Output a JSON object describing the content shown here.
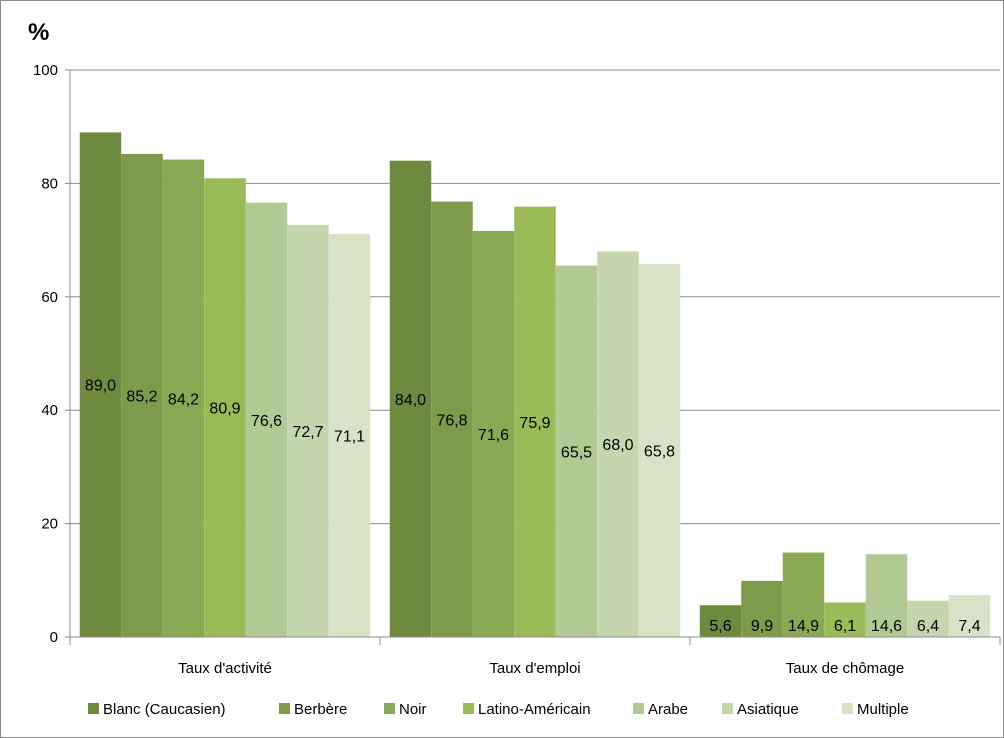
{
  "chart_data": {
    "type": "bar",
    "ylabel": "%",
    "ylim": [
      0,
      100
    ],
    "yticks": [
      0,
      20,
      40,
      60,
      80,
      100
    ],
    "grid": true,
    "legend_position": "bottom",
    "categories": [
      "Taux d'activité",
      "Taux d'emploi",
      "Taux de chômage"
    ],
    "series": [
      {
        "name": "Blanc (Caucasien)",
        "color": "#6f8a3f",
        "values": [
          89.0,
          84.0,
          5.6
        ],
        "labels": [
          "89,0",
          "84,0",
          "5,6"
        ]
      },
      {
        "name": "Berbère",
        "color": "#7e9a4a",
        "values": [
          85.2,
          76.8,
          9.9
        ],
        "labels": [
          "85,2",
          "76,8",
          "9,9"
        ]
      },
      {
        "name": "Noir",
        "color": "#8aa954",
        "values": [
          84.2,
          71.6,
          14.9
        ],
        "labels": [
          "84,2",
          "71,6",
          "14,9"
        ]
      },
      {
        "name": "Latino-Américain",
        "color": "#9bbb59",
        "values": [
          80.9,
          75.9,
          6.1
        ],
        "labels": [
          "80,9",
          "75,9",
          "6,1"
        ]
      },
      {
        "name": "Arabe",
        "color": "#b2c993",
        "values": [
          76.6,
          65.5,
          14.6
        ],
        "labels": [
          "76,6",
          "65,5",
          "14,6"
        ]
      },
      {
        "name": "Asiatique",
        "color": "#c5d6ae",
        "values": [
          72.7,
          68.0,
          6.4
        ],
        "labels": [
          "72,7",
          "68,0",
          "6,4"
        ]
      },
      {
        "name": "Multiple",
        "color": "#d7e2c6",
        "values": [
          71.1,
          65.8,
          7.4
        ],
        "labels": [
          "71,1",
          "65,8",
          "7,4"
        ]
      }
    ]
  }
}
